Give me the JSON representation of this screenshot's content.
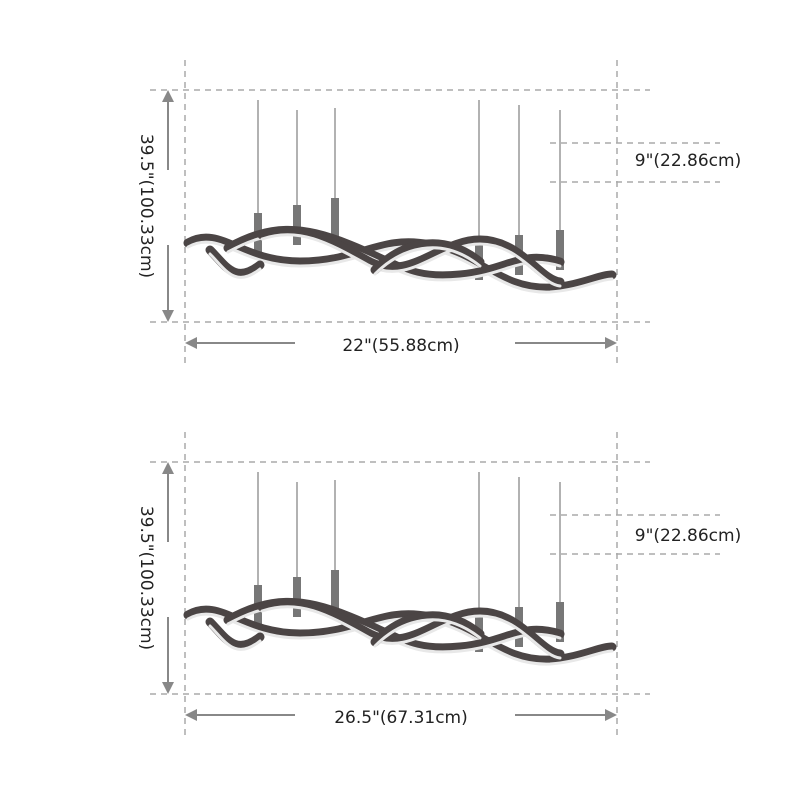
{
  "panels": [
    {
      "height_label": "39.5\"(100.33cm)",
      "width_label": "22\"(55.88cm)",
      "drop_label": "9\"(22.86cm)"
    },
    {
      "height_label": "39.5\"(100.33cm)",
      "width_label": "26.5\"(67.31cm)",
      "drop_label": "9\"(22.86cm)"
    }
  ]
}
